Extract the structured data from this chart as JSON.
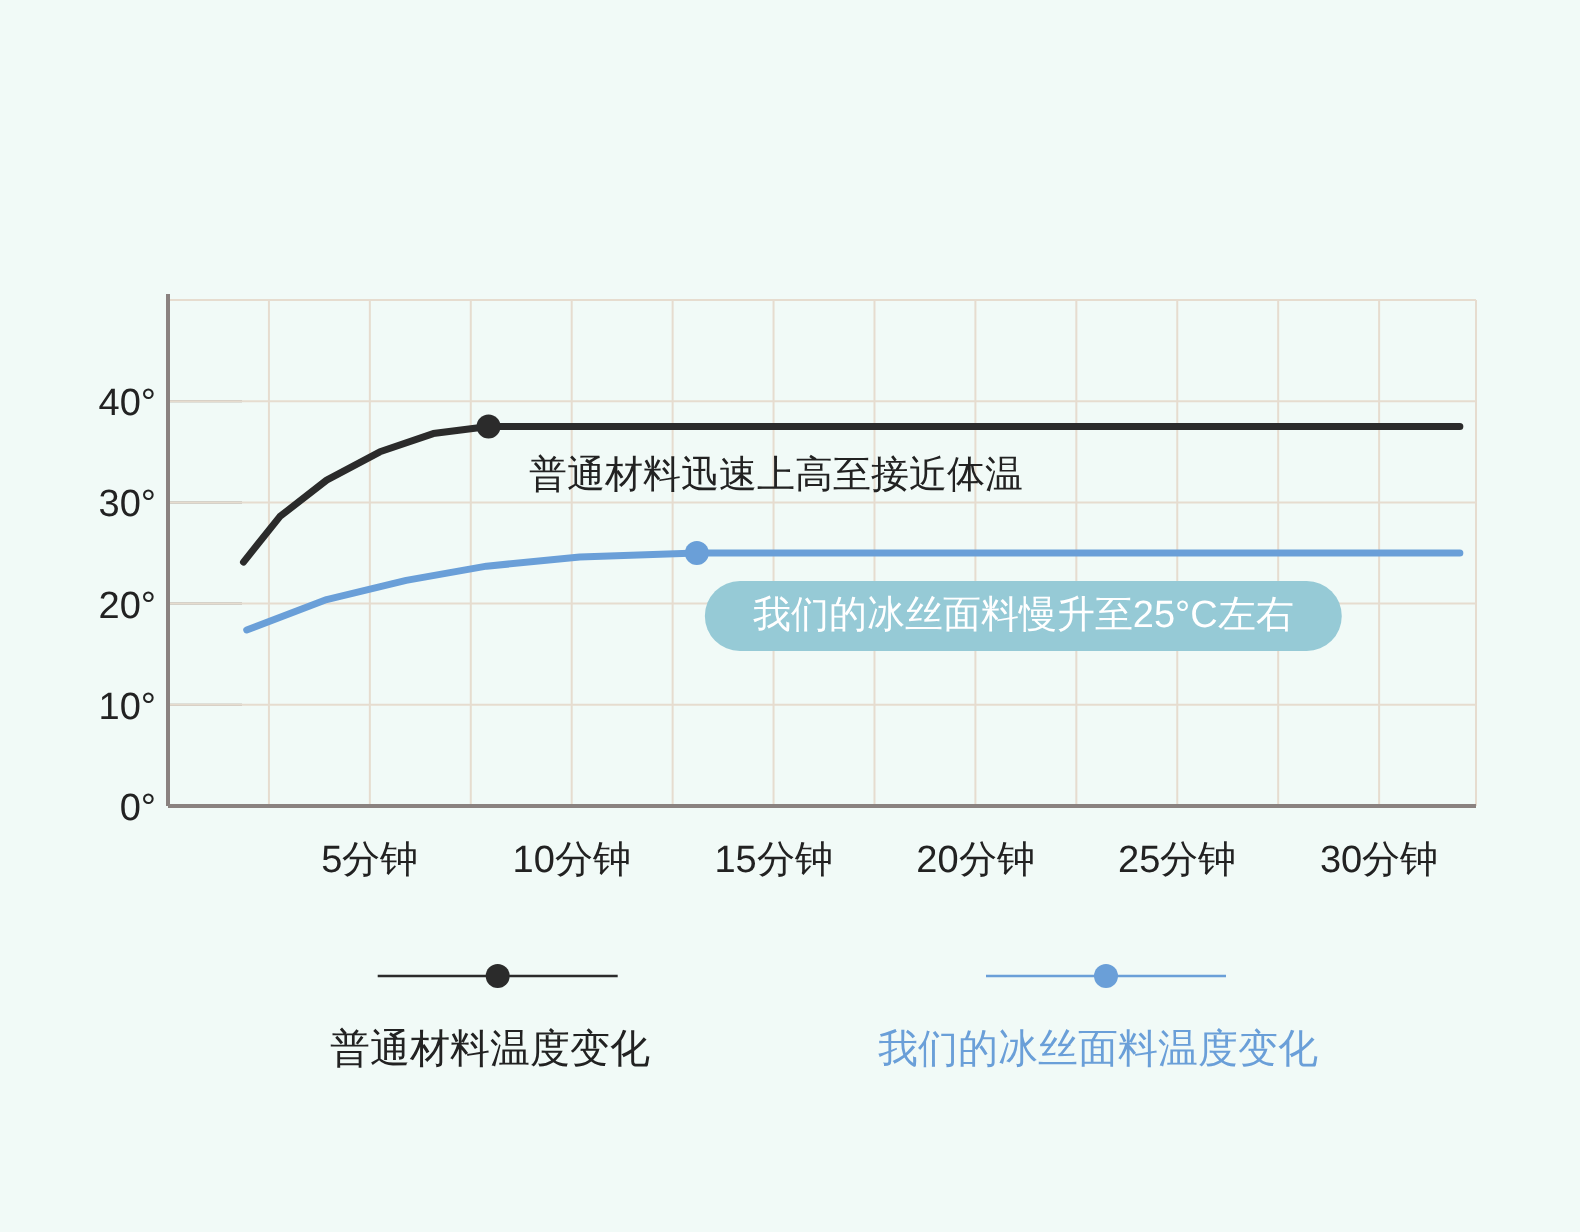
{
  "chart_data": {
    "type": "line",
    "x": [
      1.87,
      2.77,
      3.93,
      5.25,
      6.57,
      7.94,
      32.0
    ],
    "series": [
      {
        "name": "普通材料温度变化",
        "color": "#2b2b2b",
        "values": [
          24.1,
          28.6,
          32.2,
          35.0,
          36.8,
          37.5,
          37.5
        ]
      },
      {
        "name": "我们的冰丝面料温度变化",
        "color": "#6a9fd8",
        "x": [
          1.95,
          3.93,
          5.9,
          7.89,
          10.2,
          13.1,
          32.0
        ],
        "values": [
          17.4,
          20.4,
          22.3,
          23.7,
          24.6,
          25.0,
          25.0
        ]
      },
      {
        "type": "scatter",
        "color": "#2b2b2b",
        "x": [
          7.94
        ],
        "values": [
          37.5
        ]
      },
      {
        "type": "scatter",
        "color": "#6a9fd8",
        "x": [
          13.1
        ],
        "values": [
          25.0
        ]
      }
    ],
    "xlim": [
      0,
      32.4
    ],
    "xticks": [
      {
        "value": 2.5,
        "label": null
      },
      {
        "value": 5,
        "label": "5分钟"
      },
      {
        "value": 7.5,
        "label": null
      },
      {
        "value": 10,
        "label": "10分钟"
      },
      {
        "value": 12.5,
        "label": null
      },
      {
        "value": 15,
        "label": "15分钟"
      },
      {
        "value": 17.5,
        "label": null
      },
      {
        "value": 20,
        "label": "20分钟"
      },
      {
        "value": 22.5,
        "label": null
      },
      {
        "value": 25,
        "label": "25分钟"
      },
      {
        "value": 27.5,
        "label": null
      },
      {
        "value": 30,
        "label": "30分钟"
      }
    ],
    "ylim": [
      0,
      50
    ],
    "yticks": [
      {
        "value": 0,
        "label": "0°"
      },
      {
        "value": 10,
        "label": "10°"
      },
      {
        "value": 20,
        "label": "20°"
      },
      {
        "value": 30,
        "label": "30°"
      },
      {
        "value": 40,
        "label": "40°"
      }
    ],
    "grid": true,
    "legend": "bottom",
    "annotations": [
      {
        "text": "普通材料迅速上高至接近体温",
        "x": 7.94,
        "y": 37.5
      },
      {
        "text": "我们的冰丝面料慢升至25°C左右",
        "x": 13.1,
        "y": 25.0
      }
    ]
  }
}
